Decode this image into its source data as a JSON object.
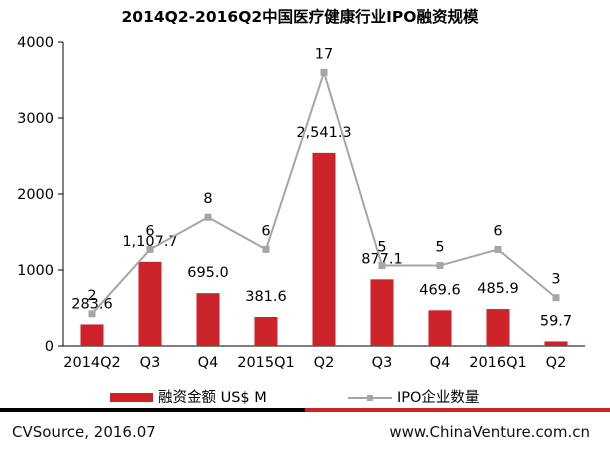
{
  "chart_data": {
    "type": "bar",
    "title": "2014Q2-2016Q2中国医疗健康行业IPO融资规模",
    "categories": [
      "2014Q2",
      "Q3",
      "Q4",
      "2015Q1",
      "Q2",
      "Q3",
      "Q4",
      "2016Q1",
      "Q2"
    ],
    "series": [
      {
        "name": "融资金额 US$ M",
        "type": "bar",
        "values": [
          283.6,
          1107.7,
          695.0,
          381.6,
          2541.3,
          877.1,
          469.6,
          485.9,
          59.7
        ],
        "labels": [
          "283.6",
          "1,107.7",
          "695.0",
          "381.6",
          "2,541.3",
          "877.1",
          "469.6",
          "485.9",
          "59.7"
        ],
        "color": "#cc2229"
      },
      {
        "name": "IPO企业数量",
        "type": "line",
        "values": [
          2,
          6,
          8,
          6,
          17,
          5,
          5,
          6,
          3
        ],
        "labels": [
          "2",
          "6",
          "8",
          "6",
          "17",
          "5",
          "5",
          "6",
          "3"
        ],
        "color": "#a6a6a6"
      }
    ],
    "yticks": [
      "0",
      "1000",
      "2000",
      "3000",
      "4000"
    ],
    "ylim": [
      0,
      4000
    ],
    "legend_position": "bottom",
    "grid": false
  },
  "footer": {
    "source": "CVSource, 2016.07",
    "website": "www.ChinaVenture.com.cn",
    "rule_colors": [
      "#000000",
      "#cc2229"
    ]
  }
}
